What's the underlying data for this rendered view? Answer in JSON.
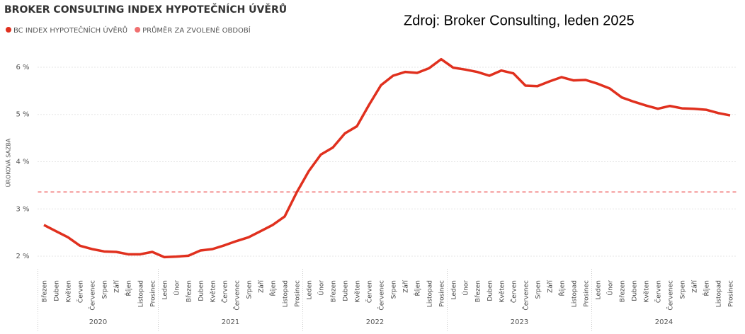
{
  "chart_data": {
    "type": "line",
    "title": "BROKER CONSULTING INDEX HYPOTEČNÍCH ÚVĚRŮ",
    "annotation": "Zdroj: Broker Consulting, leden 2025",
    "y_label": "ÚROKOVÁ SAZBA",
    "categories": [
      "Březen",
      "Duben",
      "Květen",
      "Červen",
      "Červenec",
      "Srpen",
      "Září",
      "Říjen",
      "Listopad",
      "Prosinec",
      "Leden",
      "Únor",
      "Březen",
      "Duben",
      "Květen",
      "Červen",
      "Červenec",
      "Srpen",
      "Září",
      "Říjen",
      "Listopad",
      "Prosinec",
      "Leden",
      "Únor",
      "Březen",
      "Duben",
      "Květen",
      "Červen",
      "Červenec",
      "Srpen",
      "Září",
      "Říjen",
      "Listopad",
      "Prosinec",
      "Leden",
      "Únor",
      "Březen",
      "Duben",
      "Květen",
      "Červen",
      "Červenec",
      "Srpen",
      "Září",
      "Říjen",
      "Listopad",
      "Prosinec",
      "Leden",
      "Únor",
      "Březen",
      "Duben",
      "Květen",
      "Červen",
      "Červenec",
      "Srpen",
      "Září",
      "Říjen",
      "Listopad",
      "Prosinec"
    ],
    "x_groups": [
      {
        "label": "2020",
        "start": 0,
        "end": 9
      },
      {
        "label": "2021",
        "start": 10,
        "end": 21
      },
      {
        "label": "2022",
        "start": 22,
        "end": 33
      },
      {
        "label": "2023",
        "start": 34,
        "end": 45
      },
      {
        "label": "2024",
        "start": 46,
        "end": 57
      }
    ],
    "series": [
      {
        "name": "BC INDEX HYPOTEČNÍCH ÚVĚRŮ",
        "color": "#e0301e",
        "values": [
          2.66,
          2.53,
          2.4,
          2.22,
          2.15,
          2.1,
          2.09,
          2.04,
          2.04,
          2.09,
          1.98,
          1.99,
          2.01,
          2.12,
          2.15,
          2.23,
          2.32,
          2.4,
          2.53,
          2.66,
          2.84,
          3.35,
          3.8,
          4.15,
          4.3,
          4.6,
          4.75,
          5.2,
          5.62,
          5.82,
          5.9,
          5.88,
          5.98,
          6.17,
          5.99,
          5.95,
          5.9,
          5.82,
          5.93,
          5.87,
          5.61,
          5.6,
          5.7,
          5.79,
          5.72,
          5.73,
          5.65,
          5.55,
          5.36,
          5.27,
          5.19,
          5.12,
          5.18,
          5.13,
          5.12,
          5.1,
          5.03,
          4.98
        ]
      }
    ],
    "reference_line": {
      "name": "PRŮMĚR ZA ZVOLENÉ OBDOBÍ",
      "value": 3.36,
      "color": "#f07070"
    },
    "ylim": [
      1.75,
      6.25
    ],
    "yticks": [
      {
        "value": 2,
        "label": "2 %"
      },
      {
        "value": 3,
        "label": "3 %"
      },
      {
        "value": 4,
        "label": "4 %"
      },
      {
        "value": 5,
        "label": "5 %"
      },
      {
        "value": 6,
        "label": "6 %"
      }
    ],
    "grid": true
  }
}
